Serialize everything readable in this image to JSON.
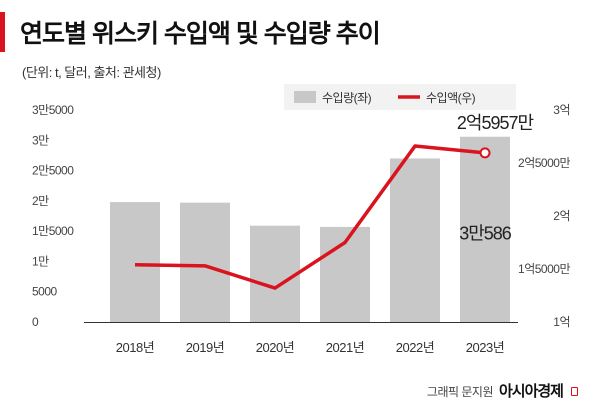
{
  "header": {
    "title": "연도별 위스키 수입액 및 수입량 추이",
    "subtitle": "(단위: t, 달러, 출처: 관세청)"
  },
  "chart_data": {
    "type": "bar+line",
    "categories": [
      "2018년",
      "2019년",
      "2020년",
      "2021년",
      "2022년",
      "2023년"
    ],
    "series": [
      {
        "name": "수입량(좌)",
        "type": "bar",
        "axis": "left",
        "color": "#c8c8c8",
        "values": [
          19800,
          19700,
          15900,
          15700,
          27000,
          30586
        ]
      },
      {
        "name": "수입액(우)",
        "type": "line",
        "axis": "right",
        "color": "#d9141e",
        "values": [
          154000000,
          153000000,
          132000000,
          175000000,
          266000000,
          259570000
        ]
      }
    ],
    "left_axis": {
      "ylim": [
        0,
        35000
      ],
      "ticks": [
        0,
        5000,
        10000,
        15000,
        20000,
        25000,
        30000,
        35000
      ],
      "tick_labels": [
        "0",
        "5000",
        "1만",
        "1만5000",
        "2만",
        "2만5000",
        "3만",
        "3만5000"
      ]
    },
    "right_axis": {
      "ylim": [
        100000000,
        300000000
      ],
      "ticks": [
        100000000,
        150000000,
        200000000,
        250000000,
        300000000
      ],
      "tick_labels": [
        "1억",
        "1억5000만",
        "2억",
        "2억5000만",
        "3억"
      ]
    },
    "annotations": [
      {
        "text": "2억5957만",
        "series": "수입액(우)",
        "category": "2023년"
      },
      {
        "text": "3만586",
        "series": "수입량(좌)",
        "category": "2023년"
      }
    ],
    "legend": {
      "placement": "top-right"
    },
    "grid": false
  },
  "footer": {
    "credit": "그래픽 문지원",
    "brand": "아시아경제"
  }
}
